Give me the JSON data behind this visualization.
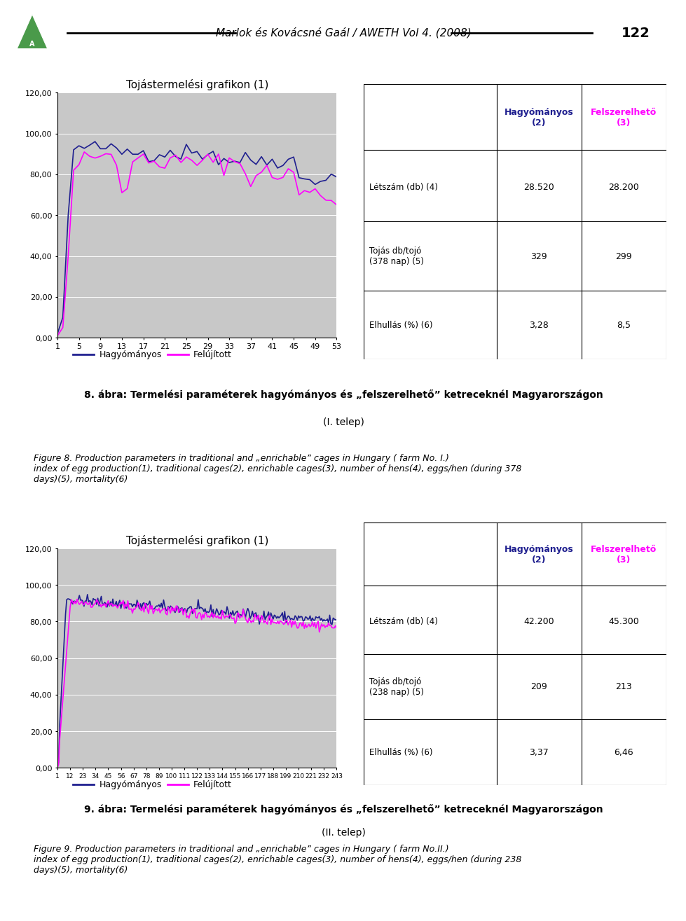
{
  "header_text": "Marlok és Kovácsné Gaál / AWETH Vol 4. (2008)",
  "page_number": "122",
  "bg_color": "#ffffff",
  "chart_bg_color": "#c8c8c8",
  "chart1_title": "Tojástermelési grafikon (1)",
  "chart2_title": "Tojástermelési grafikon (1)",
  "chart1_yticks": [
    0,
    20,
    40,
    60,
    80,
    100,
    120
  ],
  "chart1_yticklabels": [
    "0,00",
    "20,00",
    "40,00",
    "60,00",
    "80,00",
    "100,00",
    "120,00"
  ],
  "chart1_xticks": [
    1,
    5,
    9,
    13,
    17,
    21,
    25,
    29,
    33,
    37,
    41,
    45,
    49,
    53
  ],
  "chart2_yticks": [
    0,
    20,
    40,
    60,
    80,
    100,
    120
  ],
  "chart2_yticklabels": [
    "0,00",
    "20,00",
    "40,00",
    "60,00",
    "80,00",
    "100,00",
    "120,00"
  ],
  "chart2_xticks": [
    1,
    12,
    23,
    34,
    45,
    56,
    67,
    78,
    89,
    100,
    111,
    122,
    133,
    144,
    155,
    166,
    177,
    188,
    199,
    210,
    221,
    232,
    243
  ],
  "line_hagyomanyos_color": "#1f1f8f",
  "line_felujitott_color": "#ff00ff",
  "legend_labels": [
    "Hagyómányos",
    "Felújított"
  ],
  "table1_col_header1": "Hagyómányos\n(2)",
  "table1_col_header2": "Felszerelhető\n(3)",
  "table1_row_labels": [
    "Létszám (db) (4)",
    "Tojás db/tojó\n(378 nap) (5)",
    "Elhullás (%) (6)"
  ],
  "table1_values": [
    [
      "28.520",
      "28.200"
    ],
    [
      "329",
      "299"
    ],
    [
      "3,28",
      "8,5"
    ]
  ],
  "table2_col_header1": "Hagyómányos\n(2)",
  "table2_col_header2": "Felszerelhető\n(3)",
  "table2_row_labels": [
    "Létszám (db) (4)",
    "Tojás db/tojó\n(238 nap) (5)",
    "Elhullás (%) (6)"
  ],
  "table2_values": [
    [
      "42.200",
      "45.300"
    ],
    [
      "209",
      "213"
    ],
    [
      "3,37",
      "6,46"
    ]
  ],
  "caption1_line1": "8. ábra: Termelési paraméterek hagyómányos és „felszerelhető” ketreceknél Magyarországon",
  "caption1_line2": "(I. telep)",
  "caption2_line1": "9. ábra: Termelési paraméterek hagyómányos és „felszerelhető” ketreceknél Magyarországon",
  "caption2_line2": "(II. telep)",
  "figure1_line1": "Figure 8. Production parameters in traditional and „enrichable” cages in Hungary ( farm No. I.)",
  "figure1_line2": "index of egg production(1), traditional cages(2), enrichable cages(3), number of hens(4), eggs/hen (during 378",
  "figure1_line3": "days)(5), mortality(6)",
  "figure2_line1": "Figure 9. Production parameters in traditional and „enrichable” cages in Hungary ( farm No.II.)",
  "figure2_line2": "index of egg production(1), traditional cages(2), enrichable cages(3), number of hens(4), eggs/hen (during 238",
  "figure2_line3": "days)(5), mortality(6)",
  "hag_color_header": "#1f1f8f",
  "fel_color_header": "#ff00ff"
}
